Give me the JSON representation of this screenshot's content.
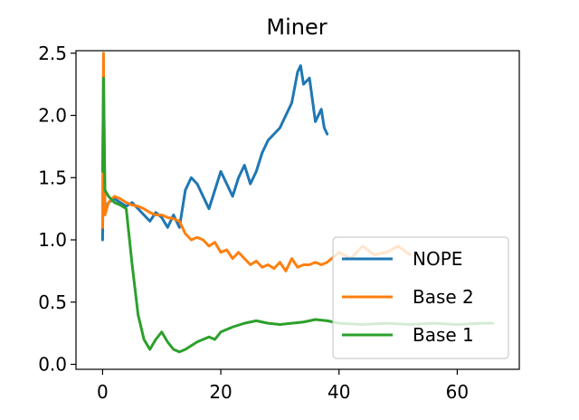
{
  "chart_data": {
    "type": "line",
    "title": "Miner",
    "xlabel": "",
    "ylabel": "",
    "xlim": [
      -4.5,
      70.5
    ],
    "ylim": [
      -0.04,
      2.52
    ],
    "xticks": [
      0,
      20,
      40,
      60
    ],
    "yticks": [
      0.0,
      0.5,
      1.0,
      1.5,
      2.0,
      2.5
    ],
    "xtick_labels": [
      "0",
      "20",
      "40",
      "60"
    ],
    "ytick_labels": [
      "0.0",
      "0.5",
      "1.0",
      "1.5",
      "2.0",
      "2.5"
    ],
    "grid": false,
    "legend_position": "lower-right",
    "series": [
      {
        "name": "NOPE",
        "color": "#1f77b4",
        "x": [
          0,
          0.15,
          0.4,
          1,
          2,
          3,
          4,
          5,
          6,
          7,
          8,
          9,
          10,
          11,
          12,
          13,
          14,
          15,
          16,
          17,
          18,
          19,
          20,
          21,
          22,
          23,
          24,
          25,
          26,
          27,
          28,
          29,
          30,
          31,
          32,
          33,
          33.5,
          34,
          35,
          36,
          36.5,
          37,
          37.5,
          38
        ],
        "y": [
          1.0,
          1.9,
          1.25,
          1.3,
          1.33,
          1.3,
          1.27,
          1.3,
          1.25,
          1.2,
          1.15,
          1.22,
          1.18,
          1.1,
          1.2,
          1.1,
          1.4,
          1.5,
          1.45,
          1.35,
          1.25,
          1.4,
          1.55,
          1.45,
          1.35,
          1.5,
          1.6,
          1.45,
          1.55,
          1.7,
          1.8,
          1.85,
          1.9,
          2.0,
          2.1,
          2.35,
          2.4,
          2.25,
          2.3,
          1.95,
          2.0,
          2.05,
          1.9,
          1.85
        ]
      },
      {
        "name": "Base 2",
        "color": "#ff7f0e",
        "x": [
          0,
          0.15,
          0.4,
          1,
          2,
          3,
          4,
          5,
          6,
          7,
          8,
          9,
          10,
          11,
          12,
          13,
          14,
          15,
          16,
          17,
          18,
          19,
          20,
          21,
          22,
          23,
          24,
          25,
          26,
          27,
          28,
          29,
          30,
          31,
          32,
          33,
          34,
          35,
          36,
          37,
          38,
          40,
          42,
          44,
          46,
          48,
          50,
          52
        ],
        "y": [
          1.1,
          2.5,
          1.2,
          1.3,
          1.35,
          1.33,
          1.3,
          1.28,
          1.27,
          1.25,
          1.22,
          1.2,
          1.2,
          1.18,
          1.17,
          1.15,
          1.05,
          1.0,
          1.02,
          1.0,
          0.95,
          0.98,
          0.9,
          0.92,
          0.85,
          0.9,
          0.85,
          0.8,
          0.83,
          0.78,
          0.8,
          0.77,
          0.82,
          0.75,
          0.85,
          0.78,
          0.8,
          0.8,
          0.82,
          0.8,
          0.82,
          0.9,
          0.85,
          0.95,
          0.88,
          0.9,
          0.95,
          0.88
        ]
      },
      {
        "name": "Base 1",
        "color": "#2ca02c",
        "x": [
          0,
          0.15,
          0.4,
          1,
          2,
          3,
          4,
          5,
          6,
          7,
          8,
          9,
          10,
          11,
          12,
          13,
          14,
          15,
          16,
          17,
          18,
          19,
          20,
          22,
          24,
          26,
          28,
          30,
          32,
          34,
          36,
          38,
          40,
          44,
          48,
          52,
          56,
          60,
          64,
          66
        ],
        "y": [
          1.55,
          2.3,
          1.4,
          1.35,
          1.3,
          1.28,
          1.25,
          0.8,
          0.4,
          0.2,
          0.12,
          0.2,
          0.26,
          0.18,
          0.12,
          0.1,
          0.12,
          0.15,
          0.18,
          0.2,
          0.22,
          0.2,
          0.26,
          0.3,
          0.33,
          0.35,
          0.33,
          0.32,
          0.33,
          0.34,
          0.36,
          0.35,
          0.33,
          0.32,
          0.33,
          0.32,
          0.33,
          0.32,
          0.33,
          0.33
        ]
      }
    ]
  }
}
